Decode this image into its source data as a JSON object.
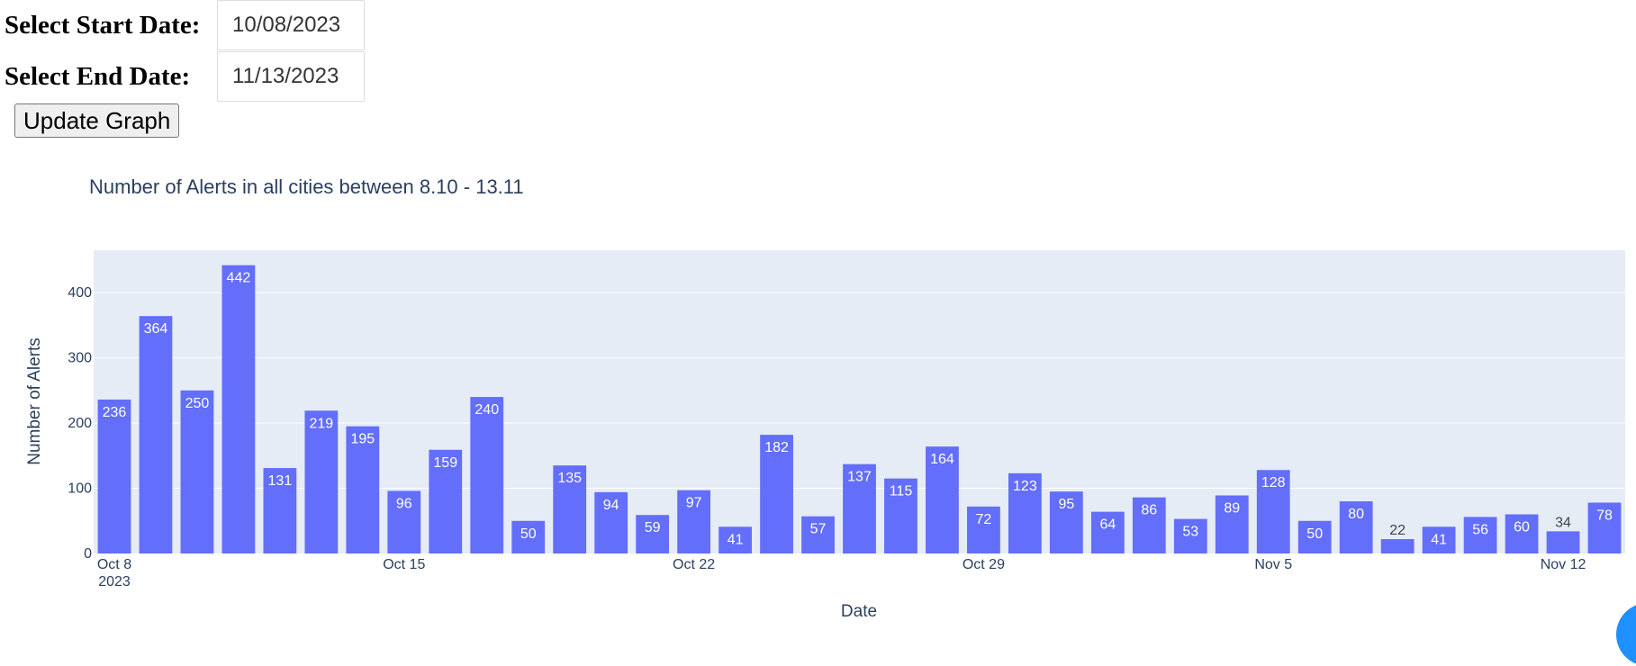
{
  "form": {
    "start_label": "Select Start Date:",
    "start_value": "10/08/2023",
    "end_label": "Select End Date:",
    "end_value": "11/13/2023",
    "update_button": "Update Graph"
  },
  "colors": {
    "bar": "#636efa",
    "plot_bg": "#e5ecf6",
    "text": "#2a3f5f",
    "corner_button": "#1e90ff"
  },
  "chart_data": {
    "type": "bar",
    "title": "Number of Alerts in all cities between 8.10 - 13.11",
    "xlabel": "Date",
    "ylabel": "Number of Alerts",
    "x": [
      "2023-10-08",
      "2023-10-09",
      "2023-10-10",
      "2023-10-11",
      "2023-10-12",
      "2023-10-13",
      "2023-10-14",
      "2023-10-15",
      "2023-10-16",
      "2023-10-17",
      "2023-10-18",
      "2023-10-19",
      "2023-10-20",
      "2023-10-21",
      "2023-10-22",
      "2023-10-23",
      "2023-10-24",
      "2023-10-25",
      "2023-10-26",
      "2023-10-27",
      "2023-10-28",
      "2023-10-29",
      "2023-10-30",
      "2023-10-31",
      "2023-11-01",
      "2023-11-02",
      "2023-11-03",
      "2023-11-04",
      "2023-11-05",
      "2023-11-06",
      "2023-11-07",
      "2023-11-08",
      "2023-11-09",
      "2023-11-10",
      "2023-11-11",
      "2023-11-12",
      "2023-11-13"
    ],
    "values": [
      236,
      364,
      250,
      442,
      131,
      219,
      195,
      96,
      159,
      240,
      50,
      135,
      94,
      59,
      97,
      41,
      182,
      57,
      137,
      115,
      164,
      72,
      123,
      95,
      64,
      86,
      53,
      89,
      128,
      50,
      80,
      22,
      41,
      56,
      60,
      34,
      78
    ],
    "ylim": [
      0,
      465
    ],
    "yticks": [
      0,
      100,
      200,
      300,
      400
    ],
    "xticks": [
      {
        "date": "2023-10-08",
        "label": "Oct 8",
        "sublabel": "2023"
      },
      {
        "date": "2023-10-15",
        "label": "Oct 15"
      },
      {
        "date": "2023-10-22",
        "label": "Oct 22"
      },
      {
        "date": "2023-10-29",
        "label": "Oct 29"
      },
      {
        "date": "2023-11-05",
        "label": "Nov 5"
      },
      {
        "date": "2023-11-12",
        "label": "Nov 12"
      }
    ],
    "grid": true,
    "legend": "none"
  }
}
